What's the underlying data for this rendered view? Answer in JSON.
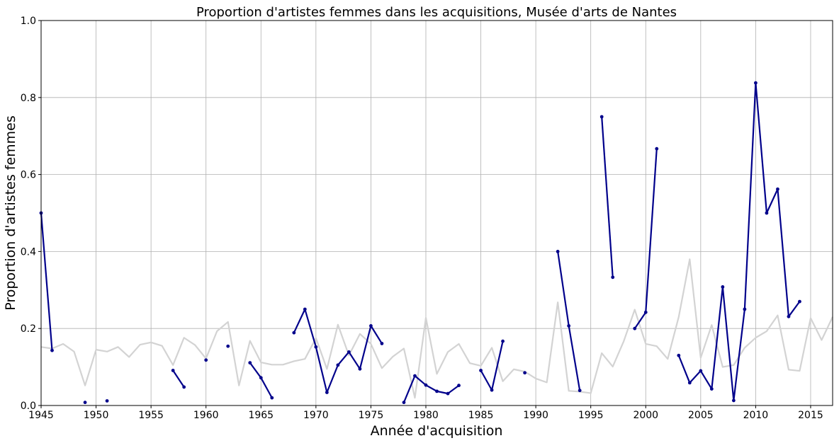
{
  "chart_data": {
    "type": "line",
    "title": "Proportion d'artistes femmes dans les acquisitions, Musée d'arts de Nantes",
    "xlabel": "Année d'acquisition",
    "ylabel": "Proportion d'artistes femmes",
    "xlim": [
      1945,
      2017
    ],
    "ylim": [
      0,
      1.0
    ],
    "grid": true,
    "xticks": [
      "1945",
      "1950",
      "1955",
      "1960",
      "1965",
      "1970",
      "1975",
      "1980",
      "1985",
      "1990",
      "1995",
      "2000",
      "2005",
      "2010",
      "2015"
    ],
    "yticks": [
      "0.0",
      "0.2",
      "0.4",
      "0.6",
      "0.8",
      "1.0"
    ],
    "colors": {
      "main": "#00008b",
      "reference": "#d3d3d3",
      "grid": "#b0b0b0"
    },
    "series": [
      {
        "role": "reference",
        "color": "#d3d3d3",
        "points": [
          [
            1945,
            0.152
          ],
          [
            1946,
            0.148
          ],
          [
            1947,
            0.16
          ],
          [
            1948,
            0.14
          ],
          [
            1949,
            0.052
          ],
          [
            1950,
            0.145
          ],
          [
            1951,
            0.14
          ],
          [
            1952,
            0.152
          ],
          [
            1953,
            0.126
          ],
          [
            1954,
            0.158
          ],
          [
            1955,
            0.164
          ],
          [
            1956,
            0.155
          ],
          [
            1957,
            0.105
          ],
          [
            1958,
            0.176
          ],
          [
            1959,
            0.157
          ],
          [
            1960,
            0.122
          ],
          [
            1961,
            0.193
          ],
          [
            1962,
            0.217
          ],
          [
            1963,
            0.052
          ],
          [
            1964,
            0.168
          ],
          [
            1965,
            0.112
          ],
          [
            1966,
            0.106
          ],
          [
            1967,
            0.106
          ],
          [
            1968,
            0.115
          ],
          [
            1969,
            0.121
          ],
          [
            1970,
            0.175
          ],
          [
            1971,
            0.095
          ],
          [
            1972,
            0.21
          ],
          [
            1973,
            0.13
          ],
          [
            1974,
            0.186
          ],
          [
            1975,
            0.16
          ],
          [
            1976,
            0.097
          ],
          [
            1977,
            0.127
          ],
          [
            1978,
            0.148
          ],
          [
            1979,
            0.02
          ],
          [
            1980,
            0.228
          ],
          [
            1981,
            0.082
          ],
          [
            1982,
            0.139
          ],
          [
            1983,
            0.16
          ],
          [
            1984,
            0.11
          ],
          [
            1985,
            0.103
          ],
          [
            1986,
            0.15
          ],
          [
            1987,
            0.063
          ],
          [
            1988,
            0.094
          ],
          [
            1989,
            0.088
          ],
          [
            1990,
            0.07
          ],
          [
            1991,
            0.06
          ],
          [
            1992,
            0.268
          ],
          [
            1993,
            0.038
          ],
          [
            1994,
            0.036
          ],
          [
            1995,
            0.032
          ],
          [
            1996,
            0.136
          ],
          [
            1997,
            0.101
          ],
          [
            1998,
            0.167
          ],
          [
            1999,
            0.249
          ],
          [
            2000,
            0.16
          ],
          [
            2001,
            0.154
          ],
          [
            2002,
            0.121
          ],
          [
            2003,
            0.23
          ],
          [
            2004,
            0.38
          ],
          [
            2005,
            0.124
          ],
          [
            2006,
            0.209
          ],
          [
            2007,
            0.1
          ],
          [
            2008,
            0.105
          ],
          [
            2009,
            0.15
          ],
          [
            2010,
            0.176
          ],
          [
            2011,
            0.193
          ],
          [
            2012,
            0.234
          ],
          [
            2013,
            0.093
          ],
          [
            2014,
            0.09
          ],
          [
            2015,
            0.227
          ],
          [
            2016,
            0.17
          ],
          [
            2017,
            0.23
          ]
        ]
      },
      {
        "role": "main",
        "color": "#00008b",
        "points": [
          [
            1945,
            0.5
          ],
          [
            1946,
            0.143
          ],
          [
            1947,
            null
          ],
          [
            1948,
            null
          ],
          [
            1949,
            0.008
          ],
          [
            1950,
            null
          ],
          [
            1951,
            0.012
          ],
          [
            1952,
            null
          ],
          [
            1953,
            null
          ],
          [
            1954,
            null
          ],
          [
            1955,
            null
          ],
          [
            1956,
            null
          ],
          [
            1957,
            0.091
          ],
          [
            1958,
            0.048
          ],
          [
            1959,
            null
          ],
          [
            1960,
            0.118
          ],
          [
            1961,
            null
          ],
          [
            1962,
            0.154
          ],
          [
            1963,
            null
          ],
          [
            1964,
            0.111
          ],
          [
            1965,
            0.072
          ],
          [
            1966,
            0.02
          ],
          [
            1967,
            null
          ],
          [
            1968,
            0.189
          ],
          [
            1969,
            0.25
          ],
          [
            1970,
            0.152
          ],
          [
            1971,
            0.034
          ],
          [
            1972,
            0.105
          ],
          [
            1973,
            0.139
          ],
          [
            1974,
            0.095
          ],
          [
            1975,
            0.207
          ],
          [
            1976,
            0.161
          ],
          [
            1977,
            null
          ],
          [
            1978,
            0.008
          ],
          [
            1979,
            0.077
          ],
          [
            1980,
            0.053
          ],
          [
            1981,
            0.037
          ],
          [
            1982,
            0.031
          ],
          [
            1983,
            0.052
          ],
          [
            1984,
            null
          ],
          [
            1985,
            0.091
          ],
          [
            1986,
            0.04
          ],
          [
            1987,
            0.167
          ],
          [
            1988,
            null
          ],
          [
            1989,
            0.085
          ],
          [
            1990,
            null
          ],
          [
            1991,
            null
          ],
          [
            1992,
            0.4
          ],
          [
            1993,
            0.207
          ],
          [
            1994,
            0.039
          ],
          [
            1995,
            null
          ],
          [
            1996,
            0.75
          ],
          [
            1997,
            0.333
          ],
          [
            1998,
            null
          ],
          [
            1999,
            0.2
          ],
          [
            2000,
            0.242
          ],
          [
            2001,
            0.667
          ],
          [
            2002,
            null
          ],
          [
            2003,
            0.13
          ],
          [
            2004,
            0.059
          ],
          [
            2005,
            0.09
          ],
          [
            2006,
            0.043
          ],
          [
            2007,
            0.308
          ],
          [
            2008,
            0.013
          ],
          [
            2009,
            0.25
          ],
          [
            2010,
            0.838
          ],
          [
            2011,
            0.5
          ],
          [
            2012,
            0.562
          ],
          [
            2013,
            0.231
          ],
          [
            2014,
            0.27
          ],
          [
            2015,
            null
          ],
          [
            2016,
            null
          ],
          [
            2017,
            null
          ]
        ]
      }
    ]
  }
}
